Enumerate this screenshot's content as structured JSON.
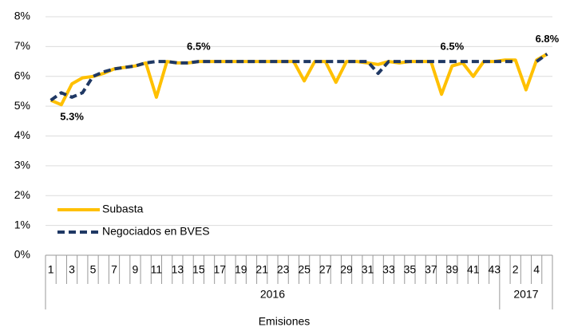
{
  "chart_data": {
    "type": "line",
    "x_label": "Emisiones",
    "categories": [
      "1",
      null,
      "3",
      null,
      "5",
      null,
      "7",
      null,
      "9",
      null,
      "11",
      null,
      "13",
      null,
      "15",
      null,
      "17",
      null,
      "19",
      null,
      "21",
      null,
      "23",
      null,
      "25",
      null,
      "27",
      null,
      "29",
      null,
      "31",
      null,
      "33",
      null,
      "35",
      null,
      "37",
      null,
      "39",
      null,
      "41",
      null,
      "43",
      null,
      "2",
      null,
      "4",
      null
    ],
    "category_groups": [
      "2016",
      "2016",
      "2016",
      "2016",
      "2016",
      "2016",
      "2016",
      "2016",
      "2016",
      "2016",
      "2016",
      "2016",
      "2016",
      "2016",
      "2016",
      "2016",
      "2016",
      "2016",
      "2016",
      "2016",
      "2016",
      "2016",
      "2016",
      "2016",
      "2016",
      "2016",
      "2016",
      "2016",
      "2016",
      "2016",
      "2016",
      "2016",
      "2016",
      "2016",
      "2016",
      "2016",
      "2016",
      "2016",
      "2016",
      "2016",
      "2016",
      "2016",
      "2016",
      "2017",
      "2017",
      "2017",
      "2017",
      "2017"
    ],
    "series": [
      {
        "name": "Subasta",
        "color": "#ffc000",
        "dash": false,
        "values": [
          5.2,
          5.05,
          5.75,
          5.95,
          6.0,
          6.1,
          6.25,
          6.3,
          6.35,
          6.45,
          5.3,
          6.5,
          6.45,
          6.45,
          6.5,
          6.5,
          6.5,
          6.5,
          6.5,
          6.5,
          6.5,
          6.5,
          6.5,
          6.5,
          5.85,
          6.5,
          6.5,
          5.8,
          6.5,
          6.5,
          6.45,
          6.4,
          6.5,
          6.45,
          6.5,
          6.5,
          6.5,
          5.4,
          6.35,
          6.45,
          6.0,
          6.5,
          6.5,
          6.55,
          6.55,
          5.55,
          6.55,
          6.75
        ]
      },
      {
        "name": "Negociados en BVES",
        "color": "#1f3864",
        "dash": true,
        "values": [
          5.2,
          5.45,
          5.3,
          5.45,
          6.0,
          6.15,
          6.25,
          6.3,
          6.35,
          6.45,
          6.5,
          6.5,
          6.45,
          6.45,
          6.5,
          6.5,
          6.5,
          6.5,
          6.5,
          6.5,
          6.5,
          6.5,
          6.5,
          6.5,
          6.5,
          6.5,
          6.5,
          6.5,
          6.5,
          6.5,
          6.5,
          6.1,
          6.5,
          6.5,
          6.5,
          6.5,
          6.5,
          6.5,
          6.5,
          6.5,
          6.5,
          6.5,
          6.5,
          6.5,
          6.5,
          null,
          6.5,
          6.75
        ],
        "value_labels": [
          null,
          null,
          "5.3%",
          null,
          null,
          null,
          null,
          null,
          null,
          null,
          null,
          null,
          null,
          null,
          "6.5%",
          null,
          null,
          null,
          null,
          null,
          null,
          null,
          null,
          null,
          null,
          null,
          null,
          null,
          null,
          null,
          null,
          null,
          null,
          null,
          null,
          null,
          null,
          null,
          "6.5%",
          null,
          null,
          null,
          null,
          null,
          null,
          null,
          null,
          "6.8%"
        ]
      }
    ],
    "ylim": [
      0,
      8
    ],
    "yticks": [
      {
        "value": 0,
        "label": "0%"
      },
      {
        "value": 1,
        "label": "1%"
      },
      {
        "value": 2,
        "label": "2%"
      },
      {
        "value": 3,
        "label": "3%"
      },
      {
        "value": 4,
        "label": "4%"
      },
      {
        "value": 5,
        "label": "5%"
      },
      {
        "value": 6,
        "label": "6%"
      },
      {
        "value": 7,
        "label": "7%"
      },
      {
        "value": 8,
        "label": "8%"
      }
    ],
    "grid": true,
    "legend": "lower-left"
  }
}
